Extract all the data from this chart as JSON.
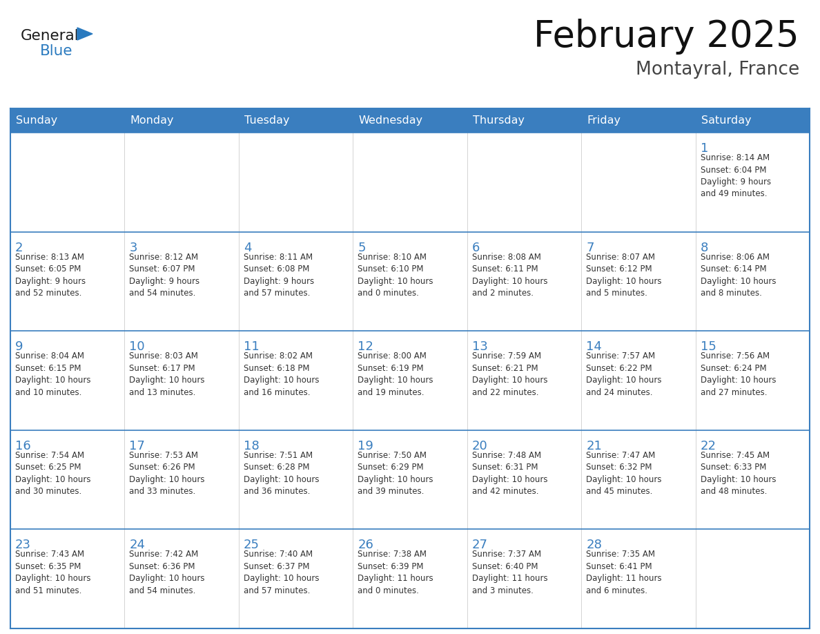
{
  "title": "February 2025",
  "subtitle": "Montayral, France",
  "header_color": "#3a7ebf",
  "header_text_color": "#ffffff",
  "border_color": "#3a7ebf",
  "grid_color": "#aaaaaa",
  "week_border_color": "#3a7ebf",
  "day_names": [
    "Sunday",
    "Monday",
    "Tuesday",
    "Wednesday",
    "Thursday",
    "Friday",
    "Saturday"
  ],
  "title_color": "#111111",
  "subtitle_color": "#444444",
  "day_num_color": "#3a7ebf",
  "info_color": "#333333",
  "logo_general_color": "#1a1a1a",
  "logo_blue_color": "#2a7abf",
  "weeks": [
    [
      {
        "day": 0,
        "info": ""
      },
      {
        "day": 0,
        "info": ""
      },
      {
        "day": 0,
        "info": ""
      },
      {
        "day": 0,
        "info": ""
      },
      {
        "day": 0,
        "info": ""
      },
      {
        "day": 0,
        "info": ""
      },
      {
        "day": 1,
        "info": "Sunrise: 8:14 AM\nSunset: 6:04 PM\nDaylight: 9 hours\nand 49 minutes."
      }
    ],
    [
      {
        "day": 2,
        "info": "Sunrise: 8:13 AM\nSunset: 6:05 PM\nDaylight: 9 hours\nand 52 minutes."
      },
      {
        "day": 3,
        "info": "Sunrise: 8:12 AM\nSunset: 6:07 PM\nDaylight: 9 hours\nand 54 minutes."
      },
      {
        "day": 4,
        "info": "Sunrise: 8:11 AM\nSunset: 6:08 PM\nDaylight: 9 hours\nand 57 minutes."
      },
      {
        "day": 5,
        "info": "Sunrise: 8:10 AM\nSunset: 6:10 PM\nDaylight: 10 hours\nand 0 minutes."
      },
      {
        "day": 6,
        "info": "Sunrise: 8:08 AM\nSunset: 6:11 PM\nDaylight: 10 hours\nand 2 minutes."
      },
      {
        "day": 7,
        "info": "Sunrise: 8:07 AM\nSunset: 6:12 PM\nDaylight: 10 hours\nand 5 minutes."
      },
      {
        "day": 8,
        "info": "Sunrise: 8:06 AM\nSunset: 6:14 PM\nDaylight: 10 hours\nand 8 minutes."
      }
    ],
    [
      {
        "day": 9,
        "info": "Sunrise: 8:04 AM\nSunset: 6:15 PM\nDaylight: 10 hours\nand 10 minutes."
      },
      {
        "day": 10,
        "info": "Sunrise: 8:03 AM\nSunset: 6:17 PM\nDaylight: 10 hours\nand 13 minutes."
      },
      {
        "day": 11,
        "info": "Sunrise: 8:02 AM\nSunset: 6:18 PM\nDaylight: 10 hours\nand 16 minutes."
      },
      {
        "day": 12,
        "info": "Sunrise: 8:00 AM\nSunset: 6:19 PM\nDaylight: 10 hours\nand 19 minutes."
      },
      {
        "day": 13,
        "info": "Sunrise: 7:59 AM\nSunset: 6:21 PM\nDaylight: 10 hours\nand 22 minutes."
      },
      {
        "day": 14,
        "info": "Sunrise: 7:57 AM\nSunset: 6:22 PM\nDaylight: 10 hours\nand 24 minutes."
      },
      {
        "day": 15,
        "info": "Sunrise: 7:56 AM\nSunset: 6:24 PM\nDaylight: 10 hours\nand 27 minutes."
      }
    ],
    [
      {
        "day": 16,
        "info": "Sunrise: 7:54 AM\nSunset: 6:25 PM\nDaylight: 10 hours\nand 30 minutes."
      },
      {
        "day": 17,
        "info": "Sunrise: 7:53 AM\nSunset: 6:26 PM\nDaylight: 10 hours\nand 33 minutes."
      },
      {
        "day": 18,
        "info": "Sunrise: 7:51 AM\nSunset: 6:28 PM\nDaylight: 10 hours\nand 36 minutes."
      },
      {
        "day": 19,
        "info": "Sunrise: 7:50 AM\nSunset: 6:29 PM\nDaylight: 10 hours\nand 39 minutes."
      },
      {
        "day": 20,
        "info": "Sunrise: 7:48 AM\nSunset: 6:31 PM\nDaylight: 10 hours\nand 42 minutes."
      },
      {
        "day": 21,
        "info": "Sunrise: 7:47 AM\nSunset: 6:32 PM\nDaylight: 10 hours\nand 45 minutes."
      },
      {
        "day": 22,
        "info": "Sunrise: 7:45 AM\nSunset: 6:33 PM\nDaylight: 10 hours\nand 48 minutes."
      }
    ],
    [
      {
        "day": 23,
        "info": "Sunrise: 7:43 AM\nSunset: 6:35 PM\nDaylight: 10 hours\nand 51 minutes."
      },
      {
        "day": 24,
        "info": "Sunrise: 7:42 AM\nSunset: 6:36 PM\nDaylight: 10 hours\nand 54 minutes."
      },
      {
        "day": 25,
        "info": "Sunrise: 7:40 AM\nSunset: 6:37 PM\nDaylight: 10 hours\nand 57 minutes."
      },
      {
        "day": 26,
        "info": "Sunrise: 7:38 AM\nSunset: 6:39 PM\nDaylight: 11 hours\nand 0 minutes."
      },
      {
        "day": 27,
        "info": "Sunrise: 7:37 AM\nSunset: 6:40 PM\nDaylight: 11 hours\nand 3 minutes."
      },
      {
        "day": 28,
        "info": "Sunrise: 7:35 AM\nSunset: 6:41 PM\nDaylight: 11 hours\nand 6 minutes."
      },
      {
        "day": 0,
        "info": ""
      }
    ]
  ],
  "figsize": [
    11.88,
    9.18
  ],
  "dpi": 100
}
